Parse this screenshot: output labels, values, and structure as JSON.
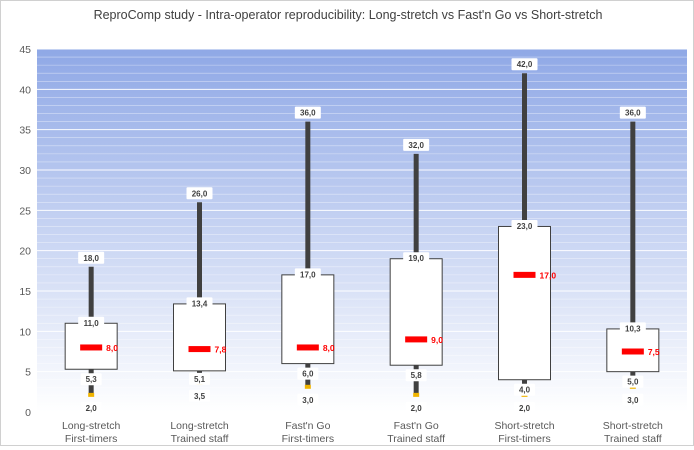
{
  "chart_data": {
    "type": "box",
    "title": "ReproComp study - Intra-operator reproducibility: Long-stretch vs Fast'n Go vs Short-stretch",
    "ylim": [
      0,
      45
    ],
    "y_ticks": [
      0,
      5,
      10,
      15,
      20,
      25,
      30,
      35,
      40,
      45
    ],
    "y_tick_labels": [
      "0",
      "5",
      "10",
      "15",
      "20",
      "25",
      "30",
      "35",
      "40",
      "45"
    ],
    "grid": true,
    "categories": [
      {
        "line1": "Long-stretch",
        "line2": "First-timers"
      },
      {
        "line1": "Long-stretch",
        "line2": "Trained staff"
      },
      {
        "line1": "Fast'n Go",
        "line2": "First-timers"
      },
      {
        "line1": "Fast'n Go",
        "line2": "Trained staff"
      },
      {
        "line1": "Short-stretch",
        "line2": "First-timers"
      },
      {
        "line1": "Short-stretch",
        "line2": "Trained staff"
      }
    ],
    "boxes": [
      {
        "min": 2.0,
        "q1": 5.3,
        "median": 8.0,
        "q3": 11.0,
        "max": 18.0,
        "labels": {
          "min": "2,0",
          "q1": "5,3",
          "median": "8,0",
          "q3": "11,0",
          "max": "18,0"
        }
      },
      {
        "min": 3.5,
        "q1": 5.1,
        "median": 7.8,
        "q3": 13.4,
        "max": 26.0,
        "labels": {
          "min": "3,5",
          "q1": "5,1",
          "median": "7,8",
          "q3": "13,4",
          "max": "26,0"
        }
      },
      {
        "min": 3.0,
        "q1": 6.0,
        "median": 8.0,
        "q3": 17.0,
        "max": 36.0,
        "labels": {
          "min": "3,0",
          "q1": "6,0",
          "median": "8,0",
          "q3": "17,0",
          "max": "36,0"
        }
      },
      {
        "min": 2.0,
        "q1": 5.8,
        "median": 9.0,
        "q3": 19.0,
        "max": 32.0,
        "labels": {
          "min": "2,0",
          "q1": "5,8",
          "median": "9,0",
          "q3": "19,0",
          "max": "32,0"
        }
      },
      {
        "min": 2.0,
        "q1": 4.0,
        "median": 17.0,
        "q3": 23.0,
        "max": 42.0,
        "labels": {
          "min": "2,0",
          "q1": "4,0",
          "median": "17,0",
          "q3": "23,0",
          "max": "42,0"
        }
      },
      {
        "min": 3.0,
        "q1": 5.0,
        "median": 7.5,
        "q3": 10.3,
        "max": 36.0,
        "labels": {
          "min": "3,0",
          "q1": "5,0",
          "median": "7,5",
          "q3": "10,3",
          "max": "36,0"
        }
      }
    ],
    "colors": {
      "background_top": "#8fa8e6",
      "background_bottom": "#ffffff",
      "whisker": "#404040",
      "box_fill": "#ffffff",
      "box_stroke": "#404040",
      "median": "#ff0000",
      "min_marker": "#f0b400",
      "label_text": "#404040",
      "axis_text": "#595959"
    }
  }
}
